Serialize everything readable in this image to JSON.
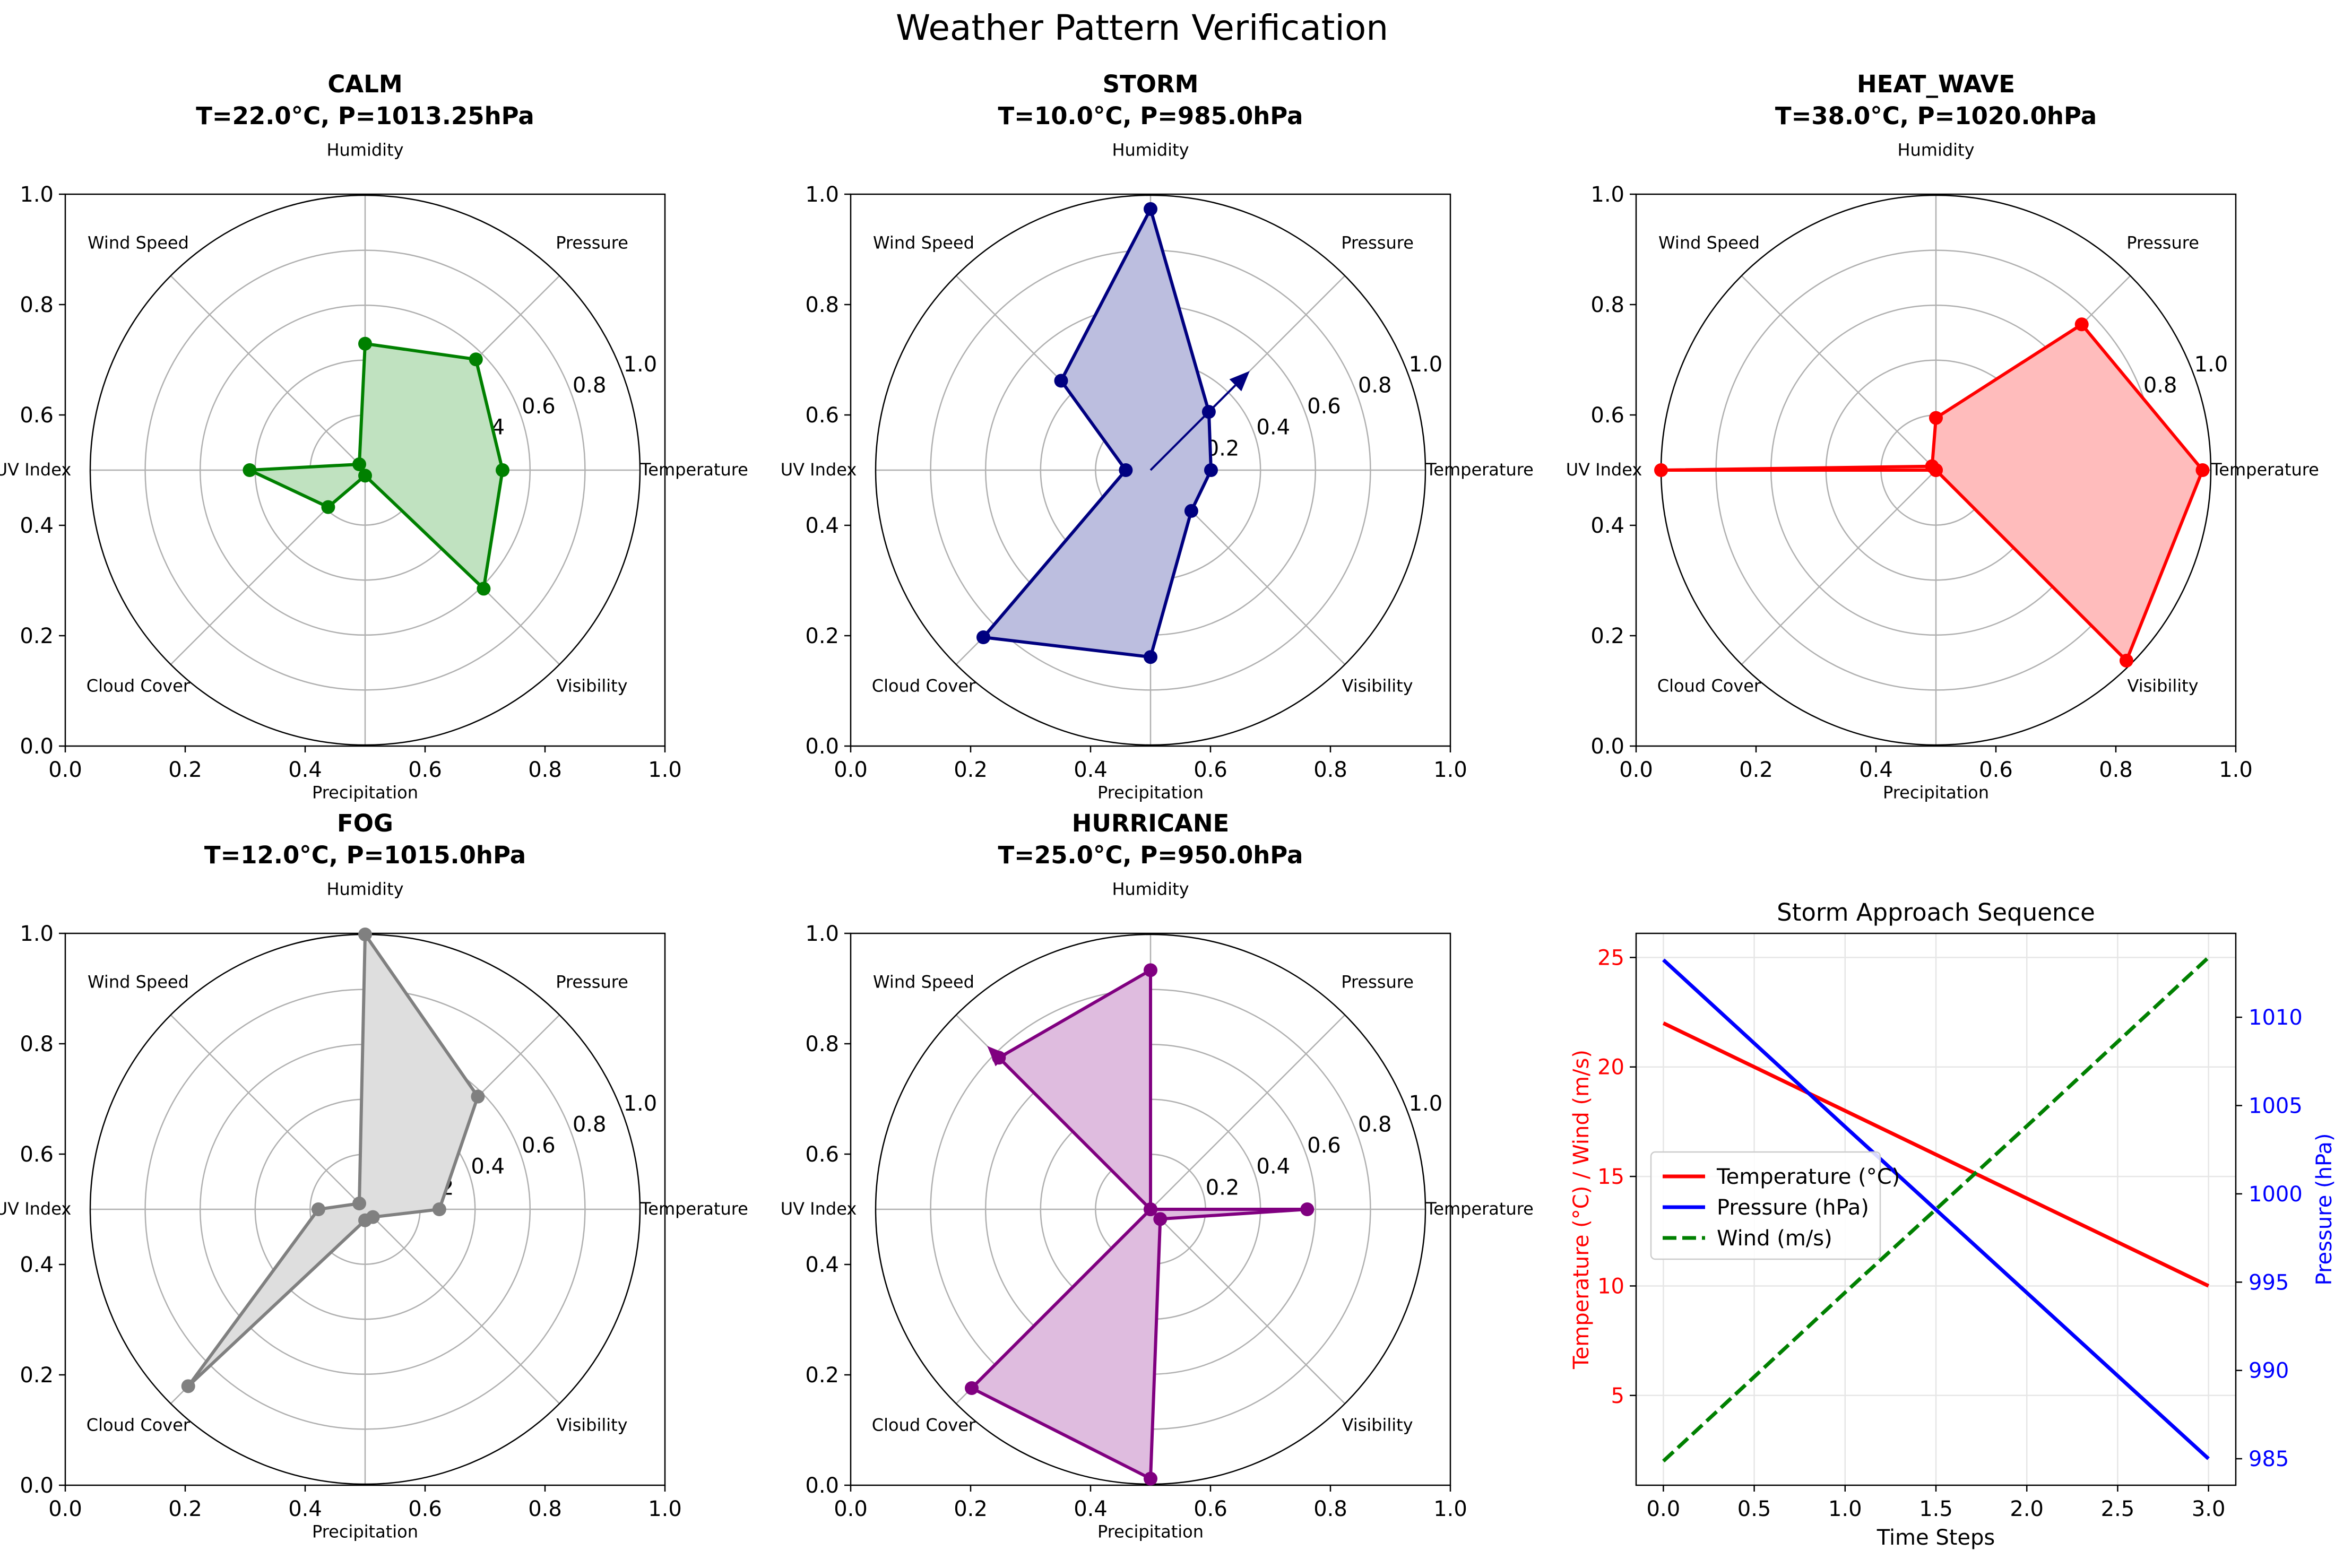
{
  "figure": {
    "title": "Weather Pattern Verification"
  },
  "radar_common": {
    "variables": [
      "Temperature",
      "Pressure",
      "Humidity",
      "Wind Speed",
      "UV Index",
      "Cloud Cover",
      "Precipitation",
      "Visibility"
    ],
    "radial_ticks": [
      "0.2",
      "0.4",
      "0.6",
      "0.8",
      "1.0"
    ],
    "frame_ticks": [
      "0.0",
      "0.2",
      "0.4",
      "0.6",
      "0.8",
      "1.0"
    ],
    "grid_color": "#b0b0b0"
  },
  "chart_data": [
    {
      "type": "radar",
      "title": "CALM",
      "subtitle": "T=22.0°C, P=1013.25hPa",
      "color": "#008000",
      "fill": "#c0e2c0",
      "values": [
        0.5,
        0.57,
        0.46,
        0.03,
        0.42,
        0.19,
        0.02,
        0.61
      ],
      "arrow": null
    },
    {
      "type": "radar",
      "title": "STORM",
      "subtitle": "T=10.0°C, P=985.0hPa",
      "color": "#000080",
      "fill": "#bcbedf",
      "values": [
        0.22,
        0.3,
        0.95,
        0.46,
        0.09,
        0.86,
        0.68,
        0.21
      ],
      "arrow": {
        "angle_deg": 45,
        "r": 0.51
      }
    },
    {
      "type": "radar",
      "title": "HEAT_WAVE",
      "subtitle": "T=38.0°C, P=1020.0hPa",
      "color": "#ff0000",
      "fill": "#ffbcbc",
      "values": [
        0.97,
        0.75,
        0.19,
        0.02,
        1.0,
        0.0,
        0.0,
        0.98
      ],
      "arrow": null
    },
    {
      "type": "radar",
      "title": "FOG",
      "subtitle": "T=12.0°C, P=1015.0hPa",
      "color": "#808080",
      "fill": "#dedede",
      "values": [
        0.27,
        0.58,
        1.0,
        0.03,
        0.17,
        0.91,
        0.04,
        0.04
      ],
      "arrow": null
    },
    {
      "type": "radar",
      "title": "HURRICANE",
      "subtitle": "T=25.0°C, P=950.0hPa",
      "color": "#800080",
      "fill": "#dfbcdf",
      "values": [
        0.57,
        0.0,
        0.87,
        0.78,
        0.0,
        0.92,
        0.98,
        0.05
      ],
      "arrow": {
        "angle_deg": 135,
        "r": 0.84
      }
    },
    {
      "type": "line",
      "title": "Storm Approach Sequence",
      "xlabel": "Time Steps",
      "ylabel_left": "Temperature (°C) / Wind (m/s)",
      "ylabel_right": "Pressure (hPa)",
      "x": [
        0,
        1,
        2,
        3
      ],
      "xlim": [
        -0.15,
        3.15
      ],
      "ylim_left": [
        0.9,
        26.1
      ],
      "ylim_right": [
        983.5,
        1014.75
      ],
      "xticks": [
        "0.0",
        "0.5",
        "1.0",
        "1.5",
        "2.0",
        "2.5",
        "3.0"
      ],
      "yticks_left": [
        "5",
        "10",
        "15",
        "20",
        "25"
      ],
      "yticks_right": [
        "985",
        "990",
        "995",
        "1000",
        "1005",
        "1010"
      ],
      "grid": true,
      "legend_position": "center-left",
      "series": [
        {
          "name": "Temperature (°C)",
          "axis": "left",
          "values": [
            22,
            18,
            14,
            10
          ],
          "color": "#ff0000",
          "style": "solid"
        },
        {
          "name": "Pressure (hPa)",
          "axis": "right",
          "values": [
            1013.25,
            1003.8,
            994.4,
            985.0
          ],
          "color": "#0000ff",
          "style": "solid"
        },
        {
          "name": "Wind (m/s)",
          "axis": "left",
          "values": [
            2,
            9.7,
            17.3,
            25
          ],
          "color": "#008000",
          "style": "dashed"
        }
      ]
    }
  ]
}
